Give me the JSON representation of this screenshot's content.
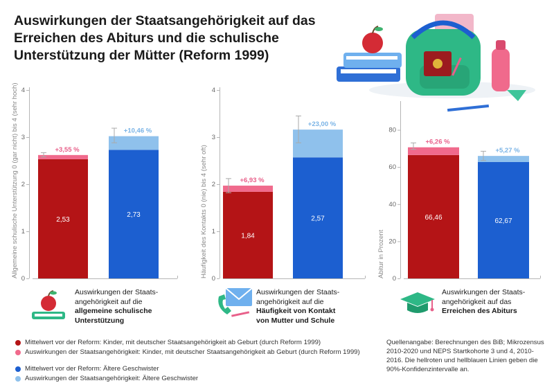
{
  "title": "Auswirkungen der Staatsangehörigkeit auf das Erreichen des Abiturs und die schulische Unterstützung der Mütter (Reform 1999)",
  "colors": {
    "dark_red": "#b41416",
    "light_red": "#f06a8c",
    "dark_blue": "#1c5fd0",
    "light_blue": "#8fc1ec",
    "axis": "#b5b5b5",
    "label_red": "#e8608a",
    "label_blue": "#79b3e6"
  },
  "captions": [
    {
      "lines": [
        "Auswirkungen der Staats-",
        "angehörigkeit auf die"
      ],
      "bold": [
        "allgemeine schulische",
        "Unterstützung"
      ],
      "icon": "apple-on-book-icon"
    },
    {
      "lines": [
        "Auswirkungen der Staats-",
        "angehörigkeit auf die"
      ],
      "bold": [
        "Häufigkeit von Kontakt",
        "von Mutter und Schule"
      ],
      "icon": "phone-envelope-icon"
    },
    {
      "lines": [
        "Auswirkungen der Staats-",
        "angehörigkeit auf das"
      ],
      "bold": [
        "Erreichen des Abiturs"
      ],
      "icon": "graduation-cap-icon"
    }
  ],
  "legend": [
    {
      "color": "#b41416",
      "label": "Mittelwert vor der Reform: Kinder, mit deutscher Staatsangehörigkeit ab Geburt (durch Reform 1999)"
    },
    {
      "color": "#f06a8c",
      "label": "Auswirkungen der Staatsangehörigkeit: Kinder, mit deutscher Staatsangehörigkeit ab Geburt (durch Reform 1999)"
    },
    {
      "color": "#1c5fd0",
      "label": "Mittelwert vor der Reform: Ältere Geschwister"
    },
    {
      "color": "#8fc1ec",
      "label": "Auswirkungen der Staatsangehörigkeit: Ältere Geschwister"
    }
  ],
  "source": "Quellenangabe: Berechnungen des BiB; Mikrozensus 2010-2020 und NEPS Startkohorte 3 und 4, 2010-2016. Die hellroten und hellblauen Linien geben die 90%-Konfidenzintervalle an.",
  "chart_data": [
    {
      "type": "bar",
      "stacked": true,
      "ylabel": "Allgemeine schulische Unterstützung 0 (gar nicht) bis 4 (sehr hoch)",
      "ylim": [
        0,
        4
      ],
      "yticks": [
        "0",
        "1",
        "2",
        "3",
        "4"
      ],
      "categories": [
        "Kinder, mit deutscher Staatsangehörigkeit ab Geburt",
        "Ältere Geschwister"
      ],
      "series": [
        {
          "name": "Mittelwert vor der Reform",
          "values": [
            2.53,
            2.73
          ],
          "labels": [
            "2,53",
            "2,73"
          ]
        },
        {
          "name": "Auswirkungen der Staatsangehörigkeit",
          "values": [
            0.09,
            0.29
          ],
          "labels": [
            "+3,55 %",
            "+10,46 %"
          ]
        }
      ],
      "ci": [
        [
          2.58,
          2.67
        ],
        [
          2.88,
          3.19
        ]
      ]
    },
    {
      "type": "bar",
      "stacked": true,
      "ylabel": "Häufigkeit des Kontakts 0 (nie) bis 4 (sehr oft)",
      "ylim": [
        0,
        4
      ],
      "yticks": [
        "0",
        "1",
        "2",
        "3",
        "4"
      ],
      "categories": [
        "Kinder, mit deutscher Staatsangehörigkeit ab Geburt",
        "Ältere Geschwister"
      ],
      "series": [
        {
          "name": "Mittelwert vor der Reform",
          "values": [
            1.84,
            2.57
          ],
          "labels": [
            "1,84",
            "2,57"
          ]
        },
        {
          "name": "Auswirkungen der Staatsangehörigkeit",
          "values": [
            0.13,
            0.59
          ],
          "labels": [
            "+6,93 %",
            "+23,00 %"
          ]
        }
      ],
      "ci": [
        [
          1.82,
          2.12
        ],
        [
          2.88,
          3.45
        ]
      ]
    },
    {
      "type": "bar",
      "stacked": true,
      "ylabel": "Abitur in Prozent",
      "ylim": [
        0,
        94
      ],
      "yticks": [
        "0",
        "20",
        "40",
        "60",
        "80"
      ],
      "categories": [
        "Kinder, mit deutscher Staatsangehörigkeit ab Geburt",
        "Ältere Geschwister"
      ],
      "series": [
        {
          "name": "Mittelwert vor der Reform",
          "values": [
            66.46,
            62.67
          ],
          "labels": [
            "66,46",
            "62,67"
          ]
        },
        {
          "name": "Auswirkungen der Staatsangehörigkeit",
          "values": [
            4.16,
            3.3
          ],
          "labels": [
            "+6,26 %",
            "+5,27 %"
          ]
        }
      ],
      "ci": [
        [
          69.5,
          73.0
        ],
        [
          63.5,
          68.5
        ]
      ]
    }
  ]
}
